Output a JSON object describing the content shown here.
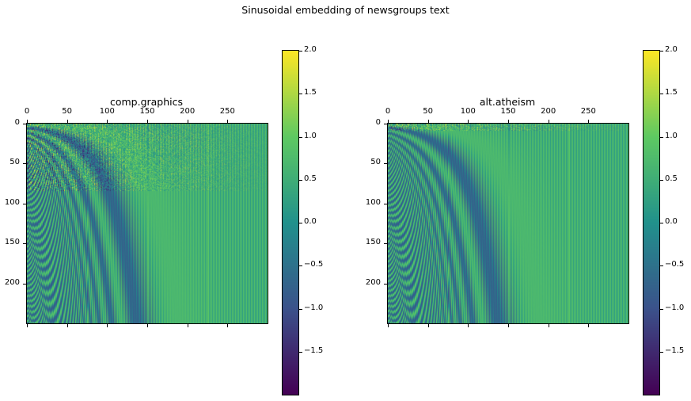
{
  "figure": {
    "suptitle": "Sinusoidal embedding of newsgroups text"
  },
  "colormap": {
    "name": "viridis",
    "stops": [
      "#440154",
      "#3b528b",
      "#21918c",
      "#5ec962",
      "#fde725"
    ]
  },
  "chart_data": [
    {
      "type": "heatmap",
      "title": "comp.graphics",
      "xlabel": "",
      "ylabel": "",
      "xlim": [
        0,
        300
      ],
      "ylim": [
        250,
        0
      ],
      "xticks": [
        "0",
        "50",
        "100",
        "150",
        "200",
        "250"
      ],
      "xtick_values": [
        0,
        50,
        100,
        150,
        200,
        250
      ],
      "yticks": [
        "0",
        "50",
        "100",
        "150",
        "200"
      ],
      "ytick_values": [
        0,
        50,
        100,
        150,
        200
      ],
      "x_axis_position": "top",
      "matrix_size": [
        250,
        300
      ],
      "token_rows": 84,
      "value_range": [
        -2,
        2
      ],
      "colorbar": {
        "ticks": [
          "2.0",
          "1.5",
          "1.0",
          "0.5",
          "0.0",
          "−0.5",
          "−1.0",
          "−1.5"
        ],
        "tick_values": [
          2.0,
          1.5,
          1.0,
          0.5,
          0.0,
          -0.5,
          -1.0,
          -1.5
        ],
        "range": [
          -2,
          2
        ]
      }
    },
    {
      "type": "heatmap",
      "title": "alt.atheism",
      "xlabel": "",
      "ylabel": "",
      "xlim": [
        0,
        300
      ],
      "ylim": [
        250,
        0
      ],
      "xticks": [
        "0",
        "50",
        "100",
        "150",
        "200",
        "250"
      ],
      "xtick_values": [
        0,
        50,
        100,
        150,
        200,
        250
      ],
      "yticks": [
        "0",
        "50",
        "100",
        "150",
        "200"
      ],
      "ytick_values": [
        0,
        50,
        100,
        150,
        200
      ],
      "x_axis_position": "top",
      "matrix_size": [
        250,
        300
      ],
      "token_rows": 8,
      "value_range": [
        -2,
        2
      ],
      "colorbar": {
        "ticks": [
          "2.0",
          "1.5",
          "1.0",
          "0.5",
          "0.0",
          "−0.5",
          "−1.0",
          "−1.5"
        ],
        "tick_values": [
          2.0,
          1.5,
          1.0,
          0.5,
          0.0,
          -0.5,
          -1.0,
          -1.5
        ],
        "range": [
          -2,
          2
        ]
      }
    }
  ]
}
